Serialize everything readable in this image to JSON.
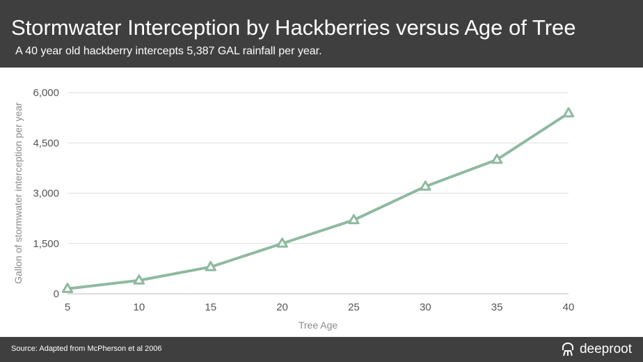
{
  "header": {
    "title": "Stormwater Interception by Hackberries versus Age of Tree",
    "subtitle": "A 40 year old hackberry intercepts 5,387 GAL rainfall per year."
  },
  "footer": {
    "source": "Source: Adapted from McPherson et al 2006",
    "brand": "deeproot",
    "brand_icon": "deeproot-logo-icon"
  },
  "colors": {
    "header_bg": "#3f3f3f",
    "series": "#8fb9a0",
    "grid": "#dddddd"
  },
  "chart_data": {
    "type": "line",
    "x": [
      5,
      10,
      15,
      20,
      25,
      30,
      35,
      40
    ],
    "series": [
      {
        "values": [
          150,
          400,
          800,
          1500,
          2200,
          3200,
          4000,
          5387
        ],
        "marker": "triangle"
      }
    ],
    "xlabel": "Tree Age",
    "ylabel": "Gallon of stormwater interception per year",
    "xticks": [
      "5",
      "10",
      "15",
      "20",
      "25",
      "30",
      "35",
      "40"
    ],
    "yticks": [
      {
        "value": 0,
        "label": "0"
      },
      {
        "value": 1500,
        "label": "1,500"
      },
      {
        "value": 3000,
        "label": "3,000"
      },
      {
        "value": 4500,
        "label": "4,500"
      },
      {
        "value": 6000,
        "label": "6,000"
      }
    ],
    "xlim": [
      5,
      40
    ],
    "ylim": [
      0,
      6000
    ],
    "grid": true
  }
}
